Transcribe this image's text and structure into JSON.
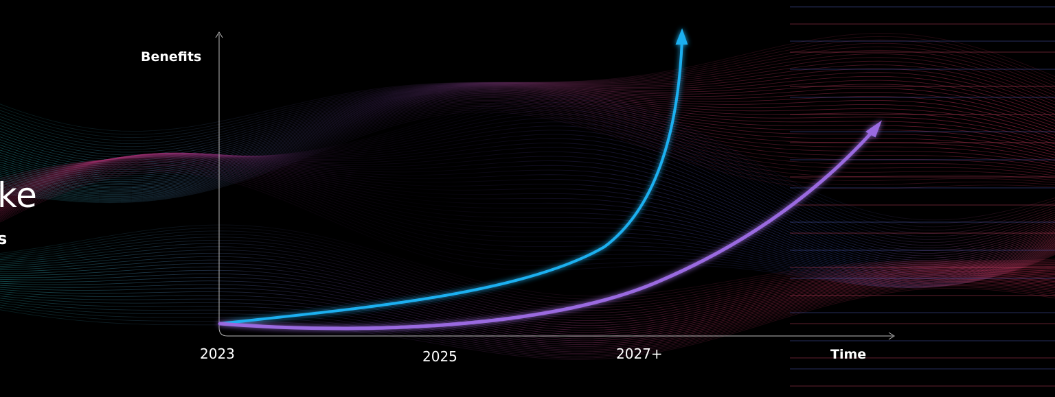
{
  "heading_fragment": "ke",
  "subheading_fragment": "s",
  "diagram": {
    "y_axis_label": "Benefits",
    "x_axis_label": "Time",
    "x_labels": [
      "2023",
      "2025",
      "2027+"
    ]
  }
}
